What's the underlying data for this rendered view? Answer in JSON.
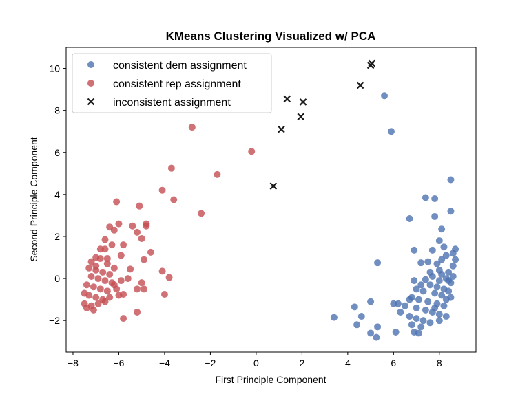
{
  "chart_data": {
    "type": "scatter",
    "title": "KMeans Clustering Visualized w/ PCA",
    "xlabel": "First Principle Component",
    "ylabel": "Second Principle Component",
    "xlim": [
      -8.3,
      9.6
    ],
    "ylim": [
      -3.5,
      11.0
    ],
    "xticks": [
      -8,
      -6,
      -4,
      -2,
      0,
      2,
      4,
      6,
      8
    ],
    "yticks": [
      -2,
      0,
      2,
      4,
      6,
      8,
      10
    ],
    "grid": false,
    "legend_position": "top-left",
    "series": [
      {
        "name": "consistent dem assignment",
        "marker": "circle",
        "color": "#4c72b0",
        "points": [
          [
            5.6,
            8.7
          ],
          [
            5.9,
            7.0
          ],
          [
            8.5,
            4.7
          ],
          [
            7.4,
            3.85
          ],
          [
            7.8,
            3.8
          ],
          [
            8.5,
            3.2
          ],
          [
            6.7,
            2.85
          ],
          [
            7.8,
            2.95
          ],
          [
            8.1,
            2.35
          ],
          [
            7.7,
            1.35
          ],
          [
            6.9,
            1.35
          ],
          [
            8.6,
            1.2
          ],
          [
            8.7,
            1.4
          ],
          [
            8.0,
            1.8
          ],
          [
            8.2,
            1.5
          ],
          [
            5.3,
            0.75
          ],
          [
            7.2,
            0.75
          ],
          [
            7.5,
            0.8
          ],
          [
            7.9,
            0.7
          ],
          [
            8.6,
            0.6
          ],
          [
            8.4,
            0.3
          ],
          [
            8.1,
            0.2
          ],
          [
            7.7,
            0.1
          ],
          [
            8.3,
            0.0
          ],
          [
            7.4,
            -0.05
          ],
          [
            8.0,
            -0.1
          ],
          [
            8.5,
            -0.2
          ],
          [
            6.9,
            -0.1
          ],
          [
            7.6,
            -0.3
          ],
          [
            7.9,
            -0.4
          ],
          [
            8.2,
            -0.5
          ],
          [
            8.4,
            -0.6
          ],
          [
            7.0,
            -0.5
          ],
          [
            7.3,
            -0.6
          ],
          [
            7.8,
            -0.7
          ],
          [
            8.1,
            -0.8
          ],
          [
            8.3,
            -1.0
          ],
          [
            6.8,
            -0.9
          ],
          [
            7.1,
            -1.0
          ],
          [
            7.5,
            -1.1
          ],
          [
            7.9,
            -1.2
          ],
          [
            8.2,
            -1.3
          ],
          [
            6.2,
            -1.2
          ],
          [
            6.5,
            -1.3
          ],
          [
            6.7,
            -1.0
          ],
          [
            7.0,
            -1.4
          ],
          [
            7.4,
            -1.5
          ],
          [
            7.7,
            -1.6
          ],
          [
            8.0,
            -1.7
          ],
          [
            8.3,
            -1.8
          ],
          [
            6.3,
            -1.6
          ],
          [
            6.7,
            -1.8
          ],
          [
            7.0,
            -1.9
          ],
          [
            7.3,
            -2.0
          ],
          [
            7.6,
            -2.1
          ],
          [
            8.0,
            -2.0
          ],
          [
            6.8,
            -2.2
          ],
          [
            7.2,
            -2.3
          ],
          [
            6.9,
            -2.55
          ],
          [
            7.1,
            -2.6
          ],
          [
            8.4,
            -0.1
          ],
          [
            8.6,
            0.1
          ],
          [
            8.7,
            0.9
          ],
          [
            8.1,
            0.9
          ],
          [
            7.6,
            0.3
          ],
          [
            7.2,
            -0.3
          ],
          [
            8.5,
            -0.9
          ],
          [
            7.8,
            -1.4
          ],
          [
            8.0,
            0.4
          ],
          [
            8.3,
            1.1
          ],
          [
            6.1,
            -2.55
          ],
          [
            5.0,
            -2.6
          ],
          [
            5.25,
            -2.8
          ],
          [
            5.3,
            -2.3
          ],
          [
            4.4,
            -2.2
          ],
          [
            4.6,
            -1.8
          ],
          [
            3.4,
            -1.85
          ],
          [
            4.3,
            -1.35
          ],
          [
            5.0,
            -1.1
          ],
          [
            6.0,
            -1.2
          ]
        ]
      },
      {
        "name": "consistent rep assignment",
        "marker": "circle",
        "color": "#c44e52",
        "points": [
          [
            -2.8,
            7.2
          ],
          [
            -0.2,
            6.05
          ],
          [
            -1.7,
            4.95
          ],
          [
            -3.7,
            5.25
          ],
          [
            -4.1,
            4.2
          ],
          [
            -3.6,
            3.75
          ],
          [
            -6.1,
            3.65
          ],
          [
            -5.1,
            3.45
          ],
          [
            -2.4,
            3.1
          ],
          [
            -6.4,
            2.45
          ],
          [
            -6.0,
            2.6
          ],
          [
            -5.4,
            2.5
          ],
          [
            -4.8,
            2.5
          ],
          [
            -4.8,
            2.6
          ],
          [
            -6.2,
            2.3
          ],
          [
            -5.2,
            2.2
          ],
          [
            -5.0,
            1.9
          ],
          [
            -6.6,
            1.85
          ],
          [
            -6.3,
            1.6
          ],
          [
            -5.8,
            1.6
          ],
          [
            -6.8,
            1.4
          ],
          [
            -6.6,
            1.4
          ],
          [
            -5.9,
            1.1
          ],
          [
            -4.6,
            1.25
          ],
          [
            -7.0,
            1.0
          ],
          [
            -6.8,
            0.95
          ],
          [
            -6.5,
            0.95
          ],
          [
            -4.9,
            0.9
          ],
          [
            -7.2,
            0.8
          ],
          [
            -6.2,
            0.5
          ],
          [
            -5.5,
            0.45
          ],
          [
            -7.3,
            0.5
          ],
          [
            -7.0,
            0.4
          ],
          [
            -6.7,
            0.3
          ],
          [
            -6.4,
            0.2
          ],
          [
            -4.1,
            0.35
          ],
          [
            -3.8,
            0.05
          ],
          [
            -7.2,
            0.1
          ],
          [
            -6.9,
            0.0
          ],
          [
            -6.6,
            -0.1
          ],
          [
            -6.3,
            -0.2
          ],
          [
            -5.9,
            -0.1
          ],
          [
            -5.0,
            -0.2
          ],
          [
            -7.4,
            -0.3
          ],
          [
            -7.1,
            -0.4
          ],
          [
            -6.8,
            -0.5
          ],
          [
            -6.5,
            -0.6
          ],
          [
            -6.1,
            -0.5
          ],
          [
            -5.2,
            -0.5
          ],
          [
            -4.9,
            -0.5
          ],
          [
            -7.3,
            -0.8
          ],
          [
            -7.0,
            -0.9
          ],
          [
            -6.7,
            -1.0
          ],
          [
            -6.4,
            -0.9
          ],
          [
            -6.0,
            -0.8
          ],
          [
            -5.8,
            -0.75
          ],
          [
            -7.5,
            -1.2
          ],
          [
            -7.2,
            -1.3
          ],
          [
            -6.9,
            -1.2
          ],
          [
            -6.6,
            -1.1
          ],
          [
            -7.4,
            -1.4
          ],
          [
            -7.1,
            -1.5
          ],
          [
            -5.8,
            -1.9
          ],
          [
            -5.2,
            -1.6
          ],
          [
            -4.0,
            -0.75
          ],
          [
            -7.0,
            0.6
          ],
          [
            -6.5,
            0.7
          ],
          [
            -7.5,
            -0.7
          ],
          [
            -6.2,
            -0.3
          ],
          [
            -5.6,
            0.0
          ]
        ]
      },
      {
        "name": "inconsistent assignment",
        "marker": "x",
        "color": "#1a1a1a",
        "points": [
          [
            5.05,
            10.25
          ],
          [
            5.0,
            10.15
          ],
          [
            4.55,
            9.2
          ],
          [
            1.35,
            8.55
          ],
          [
            2.05,
            8.4
          ],
          [
            1.95,
            7.7
          ],
          [
            1.1,
            7.1
          ],
          [
            0.75,
            4.4
          ]
        ]
      }
    ]
  }
}
